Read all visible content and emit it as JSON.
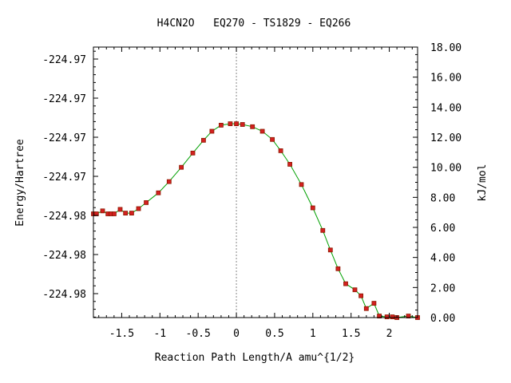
{
  "colors": {
    "line": "#00a000",
    "marker": "#d42020",
    "marker_edge": "#8a1a00",
    "zero_line": "#888888",
    "axis": "#000000"
  },
  "chart_data": {
    "type": "line",
    "title": "H4CN2O   EQ270 - TS1829 - EQ266",
    "xlabel": "Reaction Path Length/A amu^{1/2}",
    "ylabel": "Energy/Hartree",
    "y2label": "kJ/mol",
    "xlim": [
      -1.87,
      2.37
    ],
    "y2lim": [
      0.0,
      18.0
    ],
    "x_ticks": [
      -1.5,
      -1,
      -0.5,
      0,
      0.5,
      1,
      1.5,
      2
    ],
    "x_tick_labels": [
      "-1.5",
      "-1",
      "-0.5",
      "0",
      "0.5",
      "1",
      "1.5",
      "2"
    ],
    "y_tick_labels": [
      "-224.97",
      "-224.97",
      "-224.97",
      "-224.97",
      "-224.98",
      "-224.98",
      "-224.98"
    ],
    "y2_ticks": [
      0,
      2,
      4,
      6,
      8,
      10,
      12,
      14,
      16,
      18
    ],
    "y2_tick_labels": [
      "0.00",
      "2.00",
      "4.00",
      "6.00",
      "8.00",
      "10.00",
      "12.00",
      "14.00",
      "16.00",
      "18.00"
    ],
    "vertical_line_x": 0,
    "grid": false,
    "series": [
      {
        "x": [
          -1.87,
          -1.83,
          -1.75,
          -1.68,
          -1.64,
          -1.6,
          -1.52,
          -1.45,
          -1.37,
          -1.28,
          -1.18,
          -1.02,
          -0.88,
          -0.72,
          -0.57,
          -0.43,
          -0.32,
          -0.2,
          -0.08,
          0.0,
          0.08,
          0.21,
          0.34,
          0.47,
          0.58,
          0.7,
          0.85,
          1.0,
          1.13,
          1.23,
          1.33,
          1.43,
          1.55,
          1.63,
          1.7,
          1.8,
          1.87,
          1.97,
          2.04,
          2.1,
          2.25,
          2.37
        ],
        "y": [
          6.9,
          6.9,
          7.1,
          6.9,
          6.9,
          6.9,
          7.2,
          6.95,
          6.95,
          7.25,
          7.65,
          8.3,
          9.05,
          10.0,
          10.95,
          11.8,
          12.4,
          12.8,
          12.9,
          12.9,
          12.85,
          12.7,
          12.4,
          11.85,
          11.1,
          10.2,
          8.85,
          7.3,
          5.8,
          4.5,
          3.25,
          2.25,
          1.85,
          1.45,
          0.6,
          0.95,
          0.1,
          0.05,
          0.05,
          0.0,
          0.1,
          0.0
        ]
      }
    ]
  }
}
